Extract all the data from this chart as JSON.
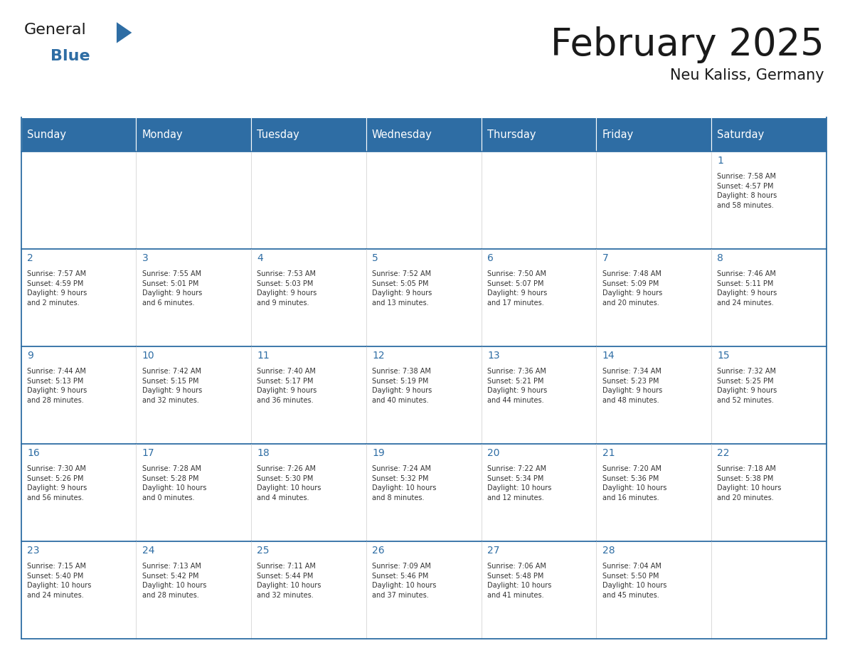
{
  "title": "February 2025",
  "subtitle": "Neu Kaliss, Germany",
  "days_of_week": [
    "Sunday",
    "Monday",
    "Tuesday",
    "Wednesday",
    "Thursday",
    "Friday",
    "Saturday"
  ],
  "header_bg": "#2E6DA4",
  "header_text": "#FFFFFF",
  "cell_bg": "#FFFFFF",
  "cell_bg_alt": "#F5F5F5",
  "day_number_color": "#2E6DA4",
  "info_text_color": "#333333",
  "border_color": "#2E6DA4",
  "blue_text_color": "#2E6DA4",
  "dark_text_color": "#1a1a1a",
  "calendar_data": [
    [
      {
        "day": null,
        "info": ""
      },
      {
        "day": null,
        "info": ""
      },
      {
        "day": null,
        "info": ""
      },
      {
        "day": null,
        "info": ""
      },
      {
        "day": null,
        "info": ""
      },
      {
        "day": null,
        "info": ""
      },
      {
        "day": 1,
        "info": "Sunrise: 7:58 AM\nSunset: 4:57 PM\nDaylight: 8 hours\nand 58 minutes."
      }
    ],
    [
      {
        "day": 2,
        "info": "Sunrise: 7:57 AM\nSunset: 4:59 PM\nDaylight: 9 hours\nand 2 minutes."
      },
      {
        "day": 3,
        "info": "Sunrise: 7:55 AM\nSunset: 5:01 PM\nDaylight: 9 hours\nand 6 minutes."
      },
      {
        "day": 4,
        "info": "Sunrise: 7:53 AM\nSunset: 5:03 PM\nDaylight: 9 hours\nand 9 minutes."
      },
      {
        "day": 5,
        "info": "Sunrise: 7:52 AM\nSunset: 5:05 PM\nDaylight: 9 hours\nand 13 minutes."
      },
      {
        "day": 6,
        "info": "Sunrise: 7:50 AM\nSunset: 5:07 PM\nDaylight: 9 hours\nand 17 minutes."
      },
      {
        "day": 7,
        "info": "Sunrise: 7:48 AM\nSunset: 5:09 PM\nDaylight: 9 hours\nand 20 minutes."
      },
      {
        "day": 8,
        "info": "Sunrise: 7:46 AM\nSunset: 5:11 PM\nDaylight: 9 hours\nand 24 minutes."
      }
    ],
    [
      {
        "day": 9,
        "info": "Sunrise: 7:44 AM\nSunset: 5:13 PM\nDaylight: 9 hours\nand 28 minutes."
      },
      {
        "day": 10,
        "info": "Sunrise: 7:42 AM\nSunset: 5:15 PM\nDaylight: 9 hours\nand 32 minutes."
      },
      {
        "day": 11,
        "info": "Sunrise: 7:40 AM\nSunset: 5:17 PM\nDaylight: 9 hours\nand 36 minutes."
      },
      {
        "day": 12,
        "info": "Sunrise: 7:38 AM\nSunset: 5:19 PM\nDaylight: 9 hours\nand 40 minutes."
      },
      {
        "day": 13,
        "info": "Sunrise: 7:36 AM\nSunset: 5:21 PM\nDaylight: 9 hours\nand 44 minutes."
      },
      {
        "day": 14,
        "info": "Sunrise: 7:34 AM\nSunset: 5:23 PM\nDaylight: 9 hours\nand 48 minutes."
      },
      {
        "day": 15,
        "info": "Sunrise: 7:32 AM\nSunset: 5:25 PM\nDaylight: 9 hours\nand 52 minutes."
      }
    ],
    [
      {
        "day": 16,
        "info": "Sunrise: 7:30 AM\nSunset: 5:26 PM\nDaylight: 9 hours\nand 56 minutes."
      },
      {
        "day": 17,
        "info": "Sunrise: 7:28 AM\nSunset: 5:28 PM\nDaylight: 10 hours\nand 0 minutes."
      },
      {
        "day": 18,
        "info": "Sunrise: 7:26 AM\nSunset: 5:30 PM\nDaylight: 10 hours\nand 4 minutes."
      },
      {
        "day": 19,
        "info": "Sunrise: 7:24 AM\nSunset: 5:32 PM\nDaylight: 10 hours\nand 8 minutes."
      },
      {
        "day": 20,
        "info": "Sunrise: 7:22 AM\nSunset: 5:34 PM\nDaylight: 10 hours\nand 12 minutes."
      },
      {
        "day": 21,
        "info": "Sunrise: 7:20 AM\nSunset: 5:36 PM\nDaylight: 10 hours\nand 16 minutes."
      },
      {
        "day": 22,
        "info": "Sunrise: 7:18 AM\nSunset: 5:38 PM\nDaylight: 10 hours\nand 20 minutes."
      }
    ],
    [
      {
        "day": 23,
        "info": "Sunrise: 7:15 AM\nSunset: 5:40 PM\nDaylight: 10 hours\nand 24 minutes."
      },
      {
        "day": 24,
        "info": "Sunrise: 7:13 AM\nSunset: 5:42 PM\nDaylight: 10 hours\nand 28 minutes."
      },
      {
        "day": 25,
        "info": "Sunrise: 7:11 AM\nSunset: 5:44 PM\nDaylight: 10 hours\nand 32 minutes."
      },
      {
        "day": 26,
        "info": "Sunrise: 7:09 AM\nSunset: 5:46 PM\nDaylight: 10 hours\nand 37 minutes."
      },
      {
        "day": 27,
        "info": "Sunrise: 7:06 AM\nSunset: 5:48 PM\nDaylight: 10 hours\nand 41 minutes."
      },
      {
        "day": 28,
        "info": "Sunrise: 7:04 AM\nSunset: 5:50 PM\nDaylight: 10 hours\nand 45 minutes."
      },
      {
        "day": null,
        "info": ""
      }
    ]
  ]
}
